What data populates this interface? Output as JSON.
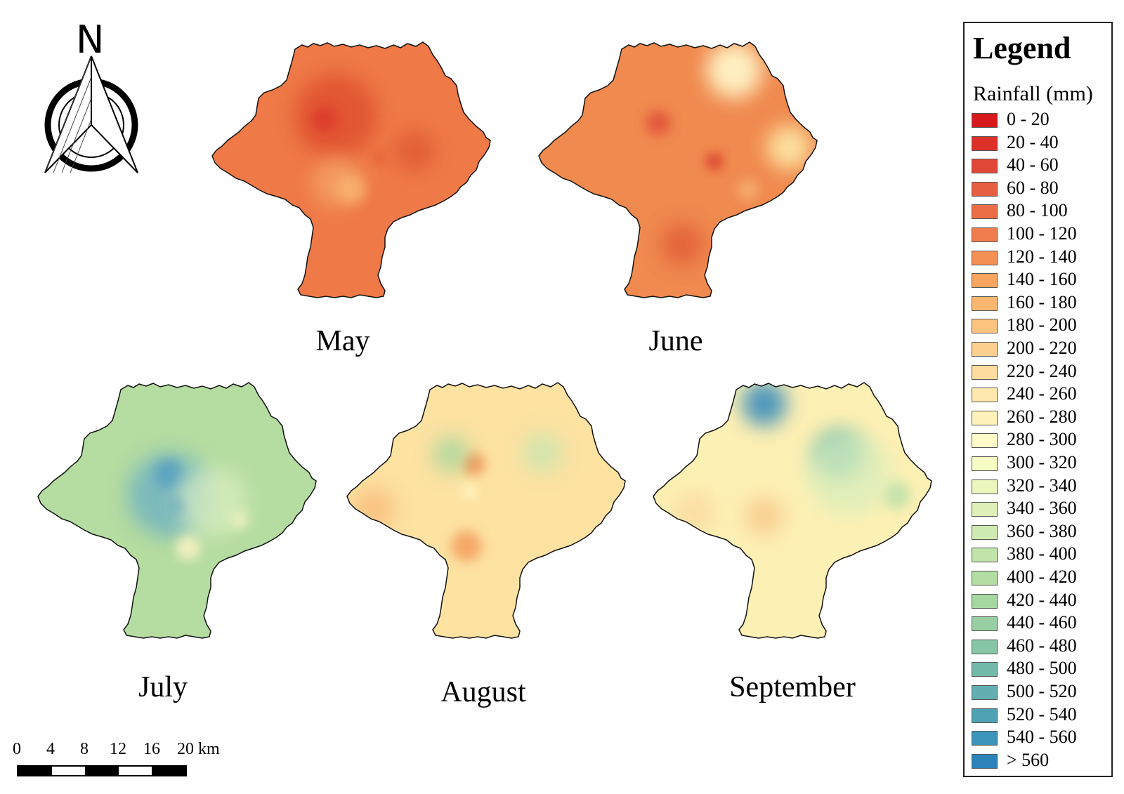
{
  "maps": [
    {
      "label": "May",
      "base": "#ef7a48",
      "hotspots": [
        {
          "c": "#e05233",
          "o": 0.9
        },
        {
          "c": "#dc3b2b",
          "o": 0.9
        },
        {
          "c": "#e05a36",
          "o": 0.85
        },
        {
          "c": "#f5a66a",
          "o": 0.8
        },
        {
          "c": "#f8b472",
          "o": 0.8
        },
        {
          "c": "#e25836",
          "o": 0.7
        }
      ]
    },
    {
      "label": "June",
      "base": "#f08a4f",
      "hotspots": [
        {
          "c": "#fff5c8",
          "o": 0.95
        },
        {
          "c": "#fde9a6",
          "o": 0.9
        },
        {
          "c": "#e2553a",
          "o": 0.9
        },
        {
          "c": "#d93a2a",
          "o": 0.9
        },
        {
          "c": "#e05a38",
          "o": 0.8
        },
        {
          "c": "#f8b679",
          "o": 0.7
        }
      ]
    },
    {
      "label": "July",
      "base": "#b5dca1",
      "hotspots": [
        {
          "c": "#2f80b8",
          "o": 0.95
        },
        {
          "c": "#6aaec5",
          "o": 0.75
        },
        {
          "c": "#3f8fbf",
          "o": 0.9
        },
        {
          "c": "#fff7c0",
          "o": 0.9
        },
        {
          "c": "#fdf4c4",
          "o": 0.85
        },
        {
          "c": "#dff0c3",
          "o": 0.7
        }
      ]
    },
    {
      "label": "August",
      "base": "#fde2a2",
      "hotspots": [
        {
          "c": "#f08a4f",
          "o": 0.85
        },
        {
          "c": "#f39a5a",
          "o": 0.8
        },
        {
          "c": "#a9d79e",
          "o": 0.85
        },
        {
          "c": "#c8e6b0",
          "o": 0.8
        },
        {
          "c": "#fffac8",
          "o": 0.85
        },
        {
          "c": "#f7b676",
          "o": 0.7
        }
      ]
    },
    {
      "label": "September",
      "base": "#fdf0b4",
      "hotspots": [
        {
          "c": "#3a8dbd",
          "o": 0.9
        },
        {
          "c": "#6bb5b0",
          "o": 0.85
        },
        {
          "c": "#b8dfa9",
          "o": 0.8
        },
        {
          "c": "#f8c88a",
          "o": 0.8
        },
        {
          "c": "#d7eebc",
          "o": 0.7
        },
        {
          "c": "#fad199",
          "o": 0.6
        }
      ]
    }
  ],
  "legend": {
    "title": "Legend",
    "subtitle": "Rainfall (mm)",
    "items": [
      {
        "label": "0 - 20",
        "color": "#d7191c"
      },
      {
        "label": "20 - 40",
        "color": "#dc3029"
      },
      {
        "label": "40 - 60",
        "color": "#e14736"
      },
      {
        "label": "60 - 80",
        "color": "#e65f42"
      },
      {
        "label": "80 - 100",
        "color": "#eb6e46"
      },
      {
        "label": "100 - 120",
        "color": "#f07d4d"
      },
      {
        "label": "120 - 140",
        "color": "#f59055"
      },
      {
        "label": "140 - 160",
        "color": "#f9a45f"
      },
      {
        "label": "160 - 180",
        "color": "#fbb66f"
      },
      {
        "label": "180 - 200",
        "color": "#fdc47f"
      },
      {
        "label": "200 - 220",
        "color": "#fdd08f"
      },
      {
        "label": "220 - 240",
        "color": "#fedc9f"
      },
      {
        "label": "240 - 260",
        "color": "#fee8ae"
      },
      {
        "label": "260 - 280",
        "color": "#fff2bb"
      },
      {
        "label": "280 - 300",
        "color": "#fffbc8"
      },
      {
        "label": "300 - 320",
        "color": "#f7fbc4"
      },
      {
        "label": "320 - 340",
        "color": "#ebf6bf"
      },
      {
        "label": "340 - 360",
        "color": "#def0b8"
      },
      {
        "label": "360 - 380",
        "color": "#cfeab1"
      },
      {
        "label": "380 - 400",
        "color": "#c0e4aa"
      },
      {
        "label": "400 - 420",
        "color": "#b2dea4"
      },
      {
        "label": "420 - 440",
        "color": "#a6d8a1"
      },
      {
        "label": "440 - 460",
        "color": "#97cfa2"
      },
      {
        "label": "460 - 480",
        "color": "#86c5a5"
      },
      {
        "label": "480 - 500",
        "color": "#74baab"
      },
      {
        "label": "500 - 520",
        "color": "#62aeb1"
      },
      {
        "label": "520 - 540",
        "color": "#4fa2b6"
      },
      {
        "label": "540 - 560",
        "color": "#3c94bb"
      },
      {
        "label": "> 560",
        "color": "#2b83ba"
      }
    ]
  },
  "scale": {
    "ticks": [
      "0",
      "4",
      "8",
      "12",
      "16",
      "20 km"
    ]
  },
  "north": {
    "label": "N",
    "icon": "north-arrow-icon"
  }
}
